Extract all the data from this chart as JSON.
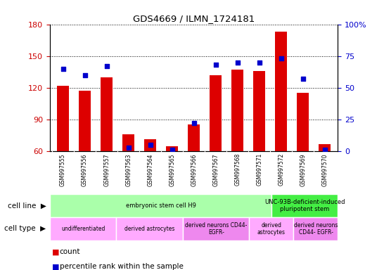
{
  "title": "GDS4669 / ILMN_1724181",
  "samples": [
    "GSM997555",
    "GSM997556",
    "GSM997557",
    "GSM997563",
    "GSM997564",
    "GSM997565",
    "GSM997566",
    "GSM997567",
    "GSM997568",
    "GSM997571",
    "GSM997572",
    "GSM997569",
    "GSM997570"
  ],
  "counts": [
    122,
    117,
    130,
    76,
    71,
    65,
    85,
    132,
    137,
    136,
    173,
    115,
    67
  ],
  "percentiles": [
    65,
    60,
    67,
    3,
    5,
    1,
    22,
    68,
    70,
    70,
    73,
    57,
    1
  ],
  "ylim_left": [
    60,
    180
  ],
  "ylim_right": [
    0,
    100
  ],
  "yticks_left": [
    60,
    90,
    120,
    150,
    180
  ],
  "yticks_right": [
    0,
    25,
    50,
    75,
    100
  ],
  "bar_color": "#dd0000",
  "dot_color": "#0000cc",
  "bar_width": 0.55,
  "cell_line_groups": [
    {
      "label": "embryonic stem cell H9",
      "start": 0,
      "end": 10,
      "color": "#aaffaa"
    },
    {
      "label": "UNC-93B-deficient-induced\npluripotent stem",
      "start": 10,
      "end": 13,
      "color": "#44ee44"
    }
  ],
  "cell_type_groups": [
    {
      "label": "undifferentiated",
      "start": 0,
      "end": 3,
      "color": "#ffaaff"
    },
    {
      "label": "derived astrocytes",
      "start": 3,
      "end": 6,
      "color": "#ffaaff"
    },
    {
      "label": "derived neurons CD44-\nEGFR-",
      "start": 6,
      "end": 9,
      "color": "#ee88ee"
    },
    {
      "label": "derived\nastrocytes",
      "start": 9,
      "end": 11,
      "color": "#ffaaff"
    },
    {
      "label": "derived neurons\nCD44- EGFR-",
      "start": 11,
      "end": 13,
      "color": "#ee88ee"
    }
  ],
  "cell_line_label": "cell line",
  "cell_type_label": "cell type",
  "legend_count_label": "count",
  "legend_pct_label": "percentile rank within the sample",
  "tick_label_color_left": "#cc0000",
  "tick_label_color_right": "#0000cc",
  "xtick_bg": "#cccccc"
}
